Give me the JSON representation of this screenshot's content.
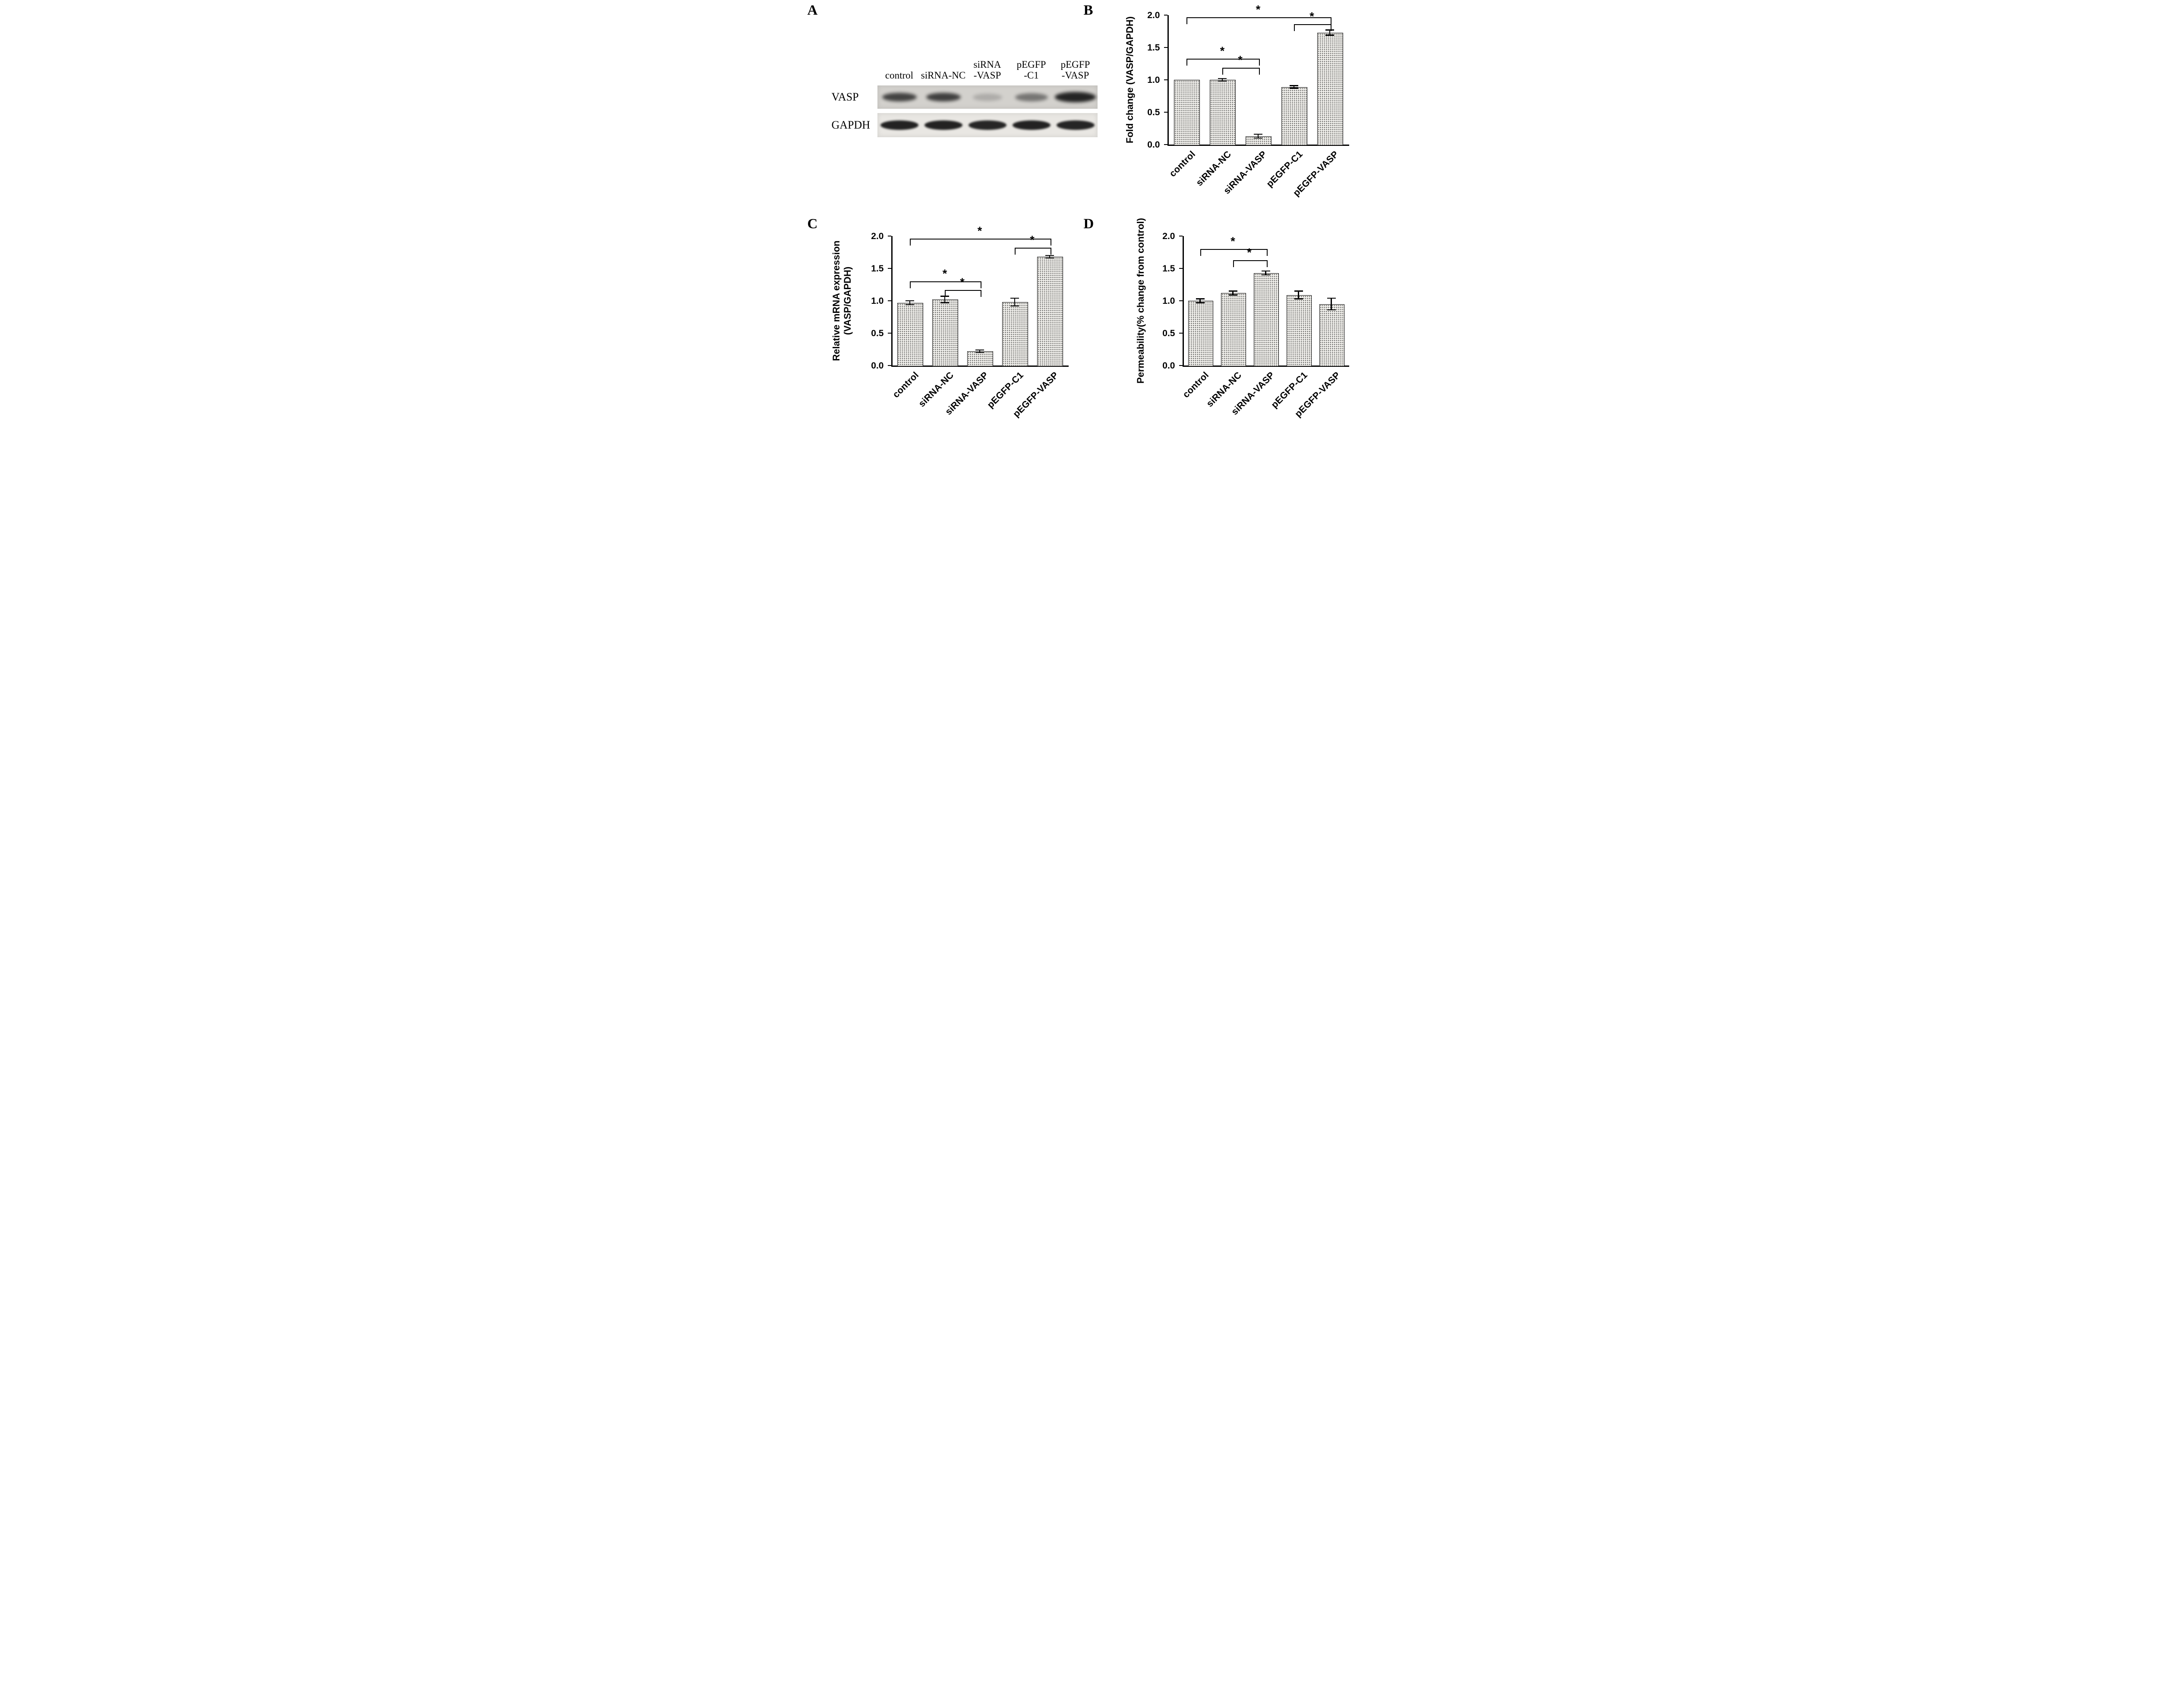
{
  "panels": {
    "A": {
      "letter": "A",
      "lanes": [
        "control",
        "siRNA-NC",
        "siRNA\n-VASP",
        "pEGFP\n-C1",
        "pEGFP\n-VASP"
      ],
      "rows": [
        {
          "label": "VASP",
          "band_intensities": [
            0.78,
            0.8,
            0.2,
            0.5,
            0.95
          ]
        },
        {
          "label": "GAPDH",
          "band_intensities": [
            0.96,
            0.96,
            0.94,
            0.96,
            0.95
          ]
        }
      ]
    },
    "B": {
      "letter": "B"
    },
    "C": {
      "letter": "C"
    },
    "D": {
      "letter": "D"
    }
  },
  "colors": {
    "ink": "#000000",
    "bar_fill": "#f5f4f0",
    "bar_dot": "#4e4e4c",
    "band": "#1b1b1b",
    "blot_strip_dark": "#d3d1cd",
    "blot_strip_light": "#e9e7e3"
  },
  "chart_data": [
    {
      "panel": "B",
      "type": "bar",
      "title": "",
      "categories": [
        "control",
        "siRNA-NC",
        "siRNA-VASP",
        "pEGFP-C1",
        "pEGFP-VASP"
      ],
      "values": [
        1.0,
        1.0,
        0.13,
        0.89,
        1.73
      ],
      "errors": [
        0.0,
        0.02,
        0.03,
        0.02,
        0.04
      ],
      "xlabel": "",
      "ylabel": "Fold change (VASP/GAPDH)",
      "ylim": [
        0,
        2.0
      ],
      "yticks": [
        "0.0",
        "0.5",
        "1.0",
        "1.5",
        "2.0"
      ],
      "grid": false,
      "legend": false,
      "significance": [
        {
          "from": 0,
          "to": 4,
          "y": 1.97,
          "label": "*"
        },
        {
          "from": 3,
          "to": 4,
          "y": 1.86,
          "label": "*"
        },
        {
          "from": 0,
          "to": 2,
          "y": 1.33,
          "label": "*"
        },
        {
          "from": 1,
          "to": 2,
          "y": 1.19,
          "label": "*"
        }
      ]
    },
    {
      "panel": "C",
      "type": "bar",
      "title": "",
      "categories": [
        "control",
        "siRNA-NC",
        "siRNA-VASP",
        "pEGFP-C1",
        "pEGFP-VASP"
      ],
      "values": [
        0.97,
        1.02,
        0.22,
        0.98,
        1.68
      ],
      "errors": [
        0.03,
        0.05,
        0.02,
        0.06,
        0.02
      ],
      "xlabel": "",
      "ylabel": "Relative mRNA expression\n(VASP/GAPDH)",
      "ylim": [
        0,
        2.0
      ],
      "yticks": [
        "0.0",
        "0.5",
        "1.0",
        "1.5",
        "2.0"
      ],
      "grid": false,
      "legend": false,
      "significance": [
        {
          "from": 0,
          "to": 4,
          "y": 1.96,
          "label": "*"
        },
        {
          "from": 3,
          "to": 4,
          "y": 1.82,
          "label": "*"
        },
        {
          "from": 0,
          "to": 2,
          "y": 1.3,
          "label": "*"
        },
        {
          "from": 1,
          "to": 2,
          "y": 1.17,
          "label": "*"
        }
      ]
    },
    {
      "panel": "D",
      "type": "bar",
      "title": "",
      "categories": [
        "control",
        "siRNA-NC",
        "siRNA-VASP",
        "pEGFP-C1",
        "pEGFP-VASP"
      ],
      "values": [
        1.0,
        1.12,
        1.43,
        1.09,
        0.95
      ],
      "errors": [
        0.03,
        0.03,
        0.03,
        0.06,
        0.09
      ],
      "xlabel": "",
      "ylabel": "Permeability(% change from control)",
      "ylim": [
        0,
        2.0
      ],
      "yticks": [
        "0.0",
        "0.5",
        "1.0",
        "1.5",
        "2.0"
      ],
      "grid": false,
      "legend": false,
      "significance": [
        {
          "from": 0,
          "to": 2,
          "y": 1.8,
          "label": "*"
        },
        {
          "from": 1,
          "to": 2,
          "y": 1.63,
          "label": "*"
        }
      ]
    }
  ]
}
